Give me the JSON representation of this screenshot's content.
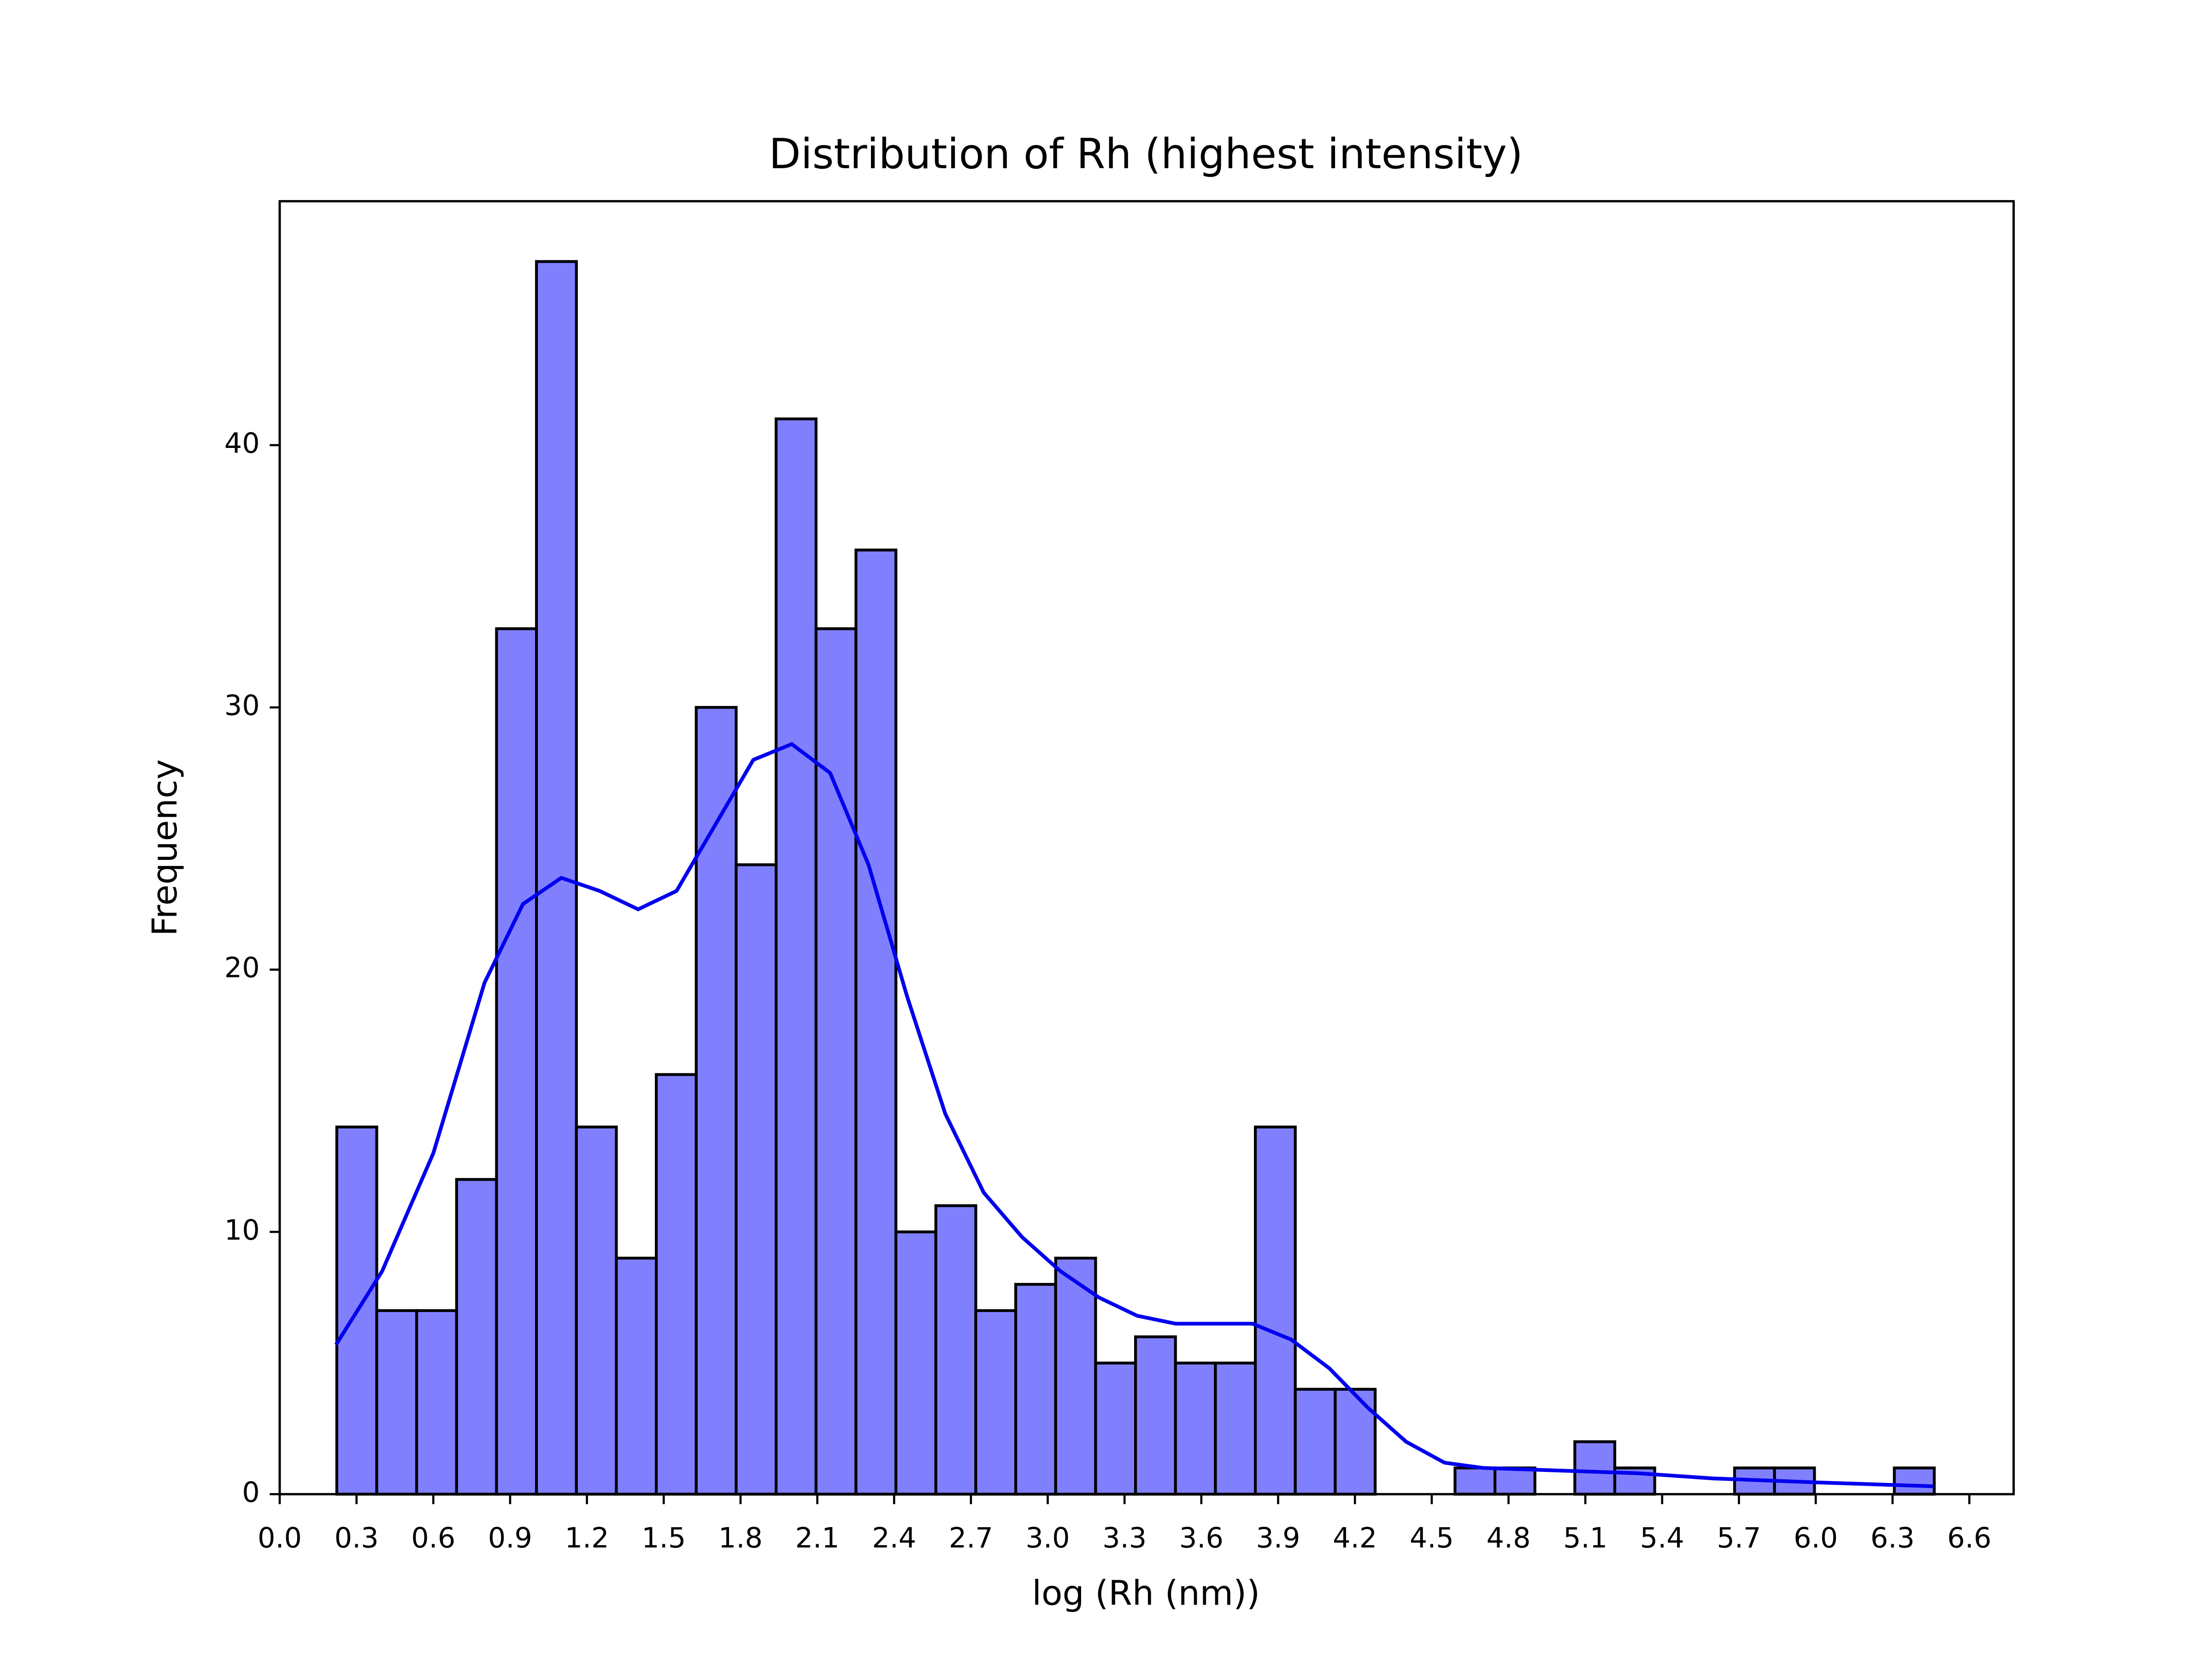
{
  "chart_data": {
    "type": "histogram",
    "title": "Distribution of Rh (highest intensity)",
    "x_label": "log (Rh (nm))",
    "y_label": "Frequency",
    "bins": [
      0.223,
      0.379,
      0.535,
      0.691,
      0.847,
      1.003,
      1.159,
      1.315,
      1.471,
      1.627,
      1.783,
      1.939,
      2.095,
      2.251,
      2.407,
      2.563,
      2.719,
      2.875,
      3.031,
      3.187,
      3.343,
      3.499,
      3.655,
      3.811,
      3.967,
      4.123,
      4.279,
      4.435,
      4.591,
      4.747,
      4.903,
      5.059,
      5.215,
      5.371,
      5.527,
      5.683,
      5.839,
      5.995,
      6.151,
      6.307,
      6.463
    ],
    "values": [
      14,
      7,
      7,
      12,
      33,
      47,
      14,
      9,
      16,
      30,
      24,
      41,
      33,
      36,
      10,
      11,
      7,
      8,
      9,
      5,
      6,
      5,
      5,
      14,
      4,
      4,
      0,
      0,
      1,
      1,
      0,
      2,
      1,
      0,
      0,
      1,
      1,
      0,
      0,
      1
    ],
    "color": "#8080ff",
    "edgecolor": "#000000",
    "kde": {
      "x": [
        0.22,
        0.4,
        0.6,
        0.8,
        0.95,
        1.1,
        1.25,
        1.4,
        1.55,
        1.7,
        1.85,
        2.0,
        2.15,
        2.3,
        2.45,
        2.6,
        2.75,
        2.9,
        3.05,
        3.2,
        3.35,
        3.5,
        3.65,
        3.8,
        3.95,
        4.1,
        4.25,
        4.4,
        4.55,
        4.7,
        5.0,
        5.3,
        5.6,
        6.0,
        6.46
      ],
      "values": [
        5.7,
        8.5,
        13,
        19.5,
        22.5,
        23.5,
        23,
        22.3,
        23,
        25.5,
        28,
        28.6,
        27.5,
        24,
        19,
        14.5,
        11.5,
        9.8,
        8.5,
        7.5,
        6.8,
        6.5,
        6.5,
        6.5,
        5.9,
        4.8,
        3.3,
        2.0,
        1.2,
        1.0,
        0.9,
        0.8,
        0.6,
        0.45,
        0.3
      ],
      "color": "#0000ee"
    },
    "xlim": [
      0,
      6.773
    ],
    "ylim": [
      0,
      49.3
    ],
    "xticks": [
      {
        "value": 0,
        "label": "0.0"
      },
      {
        "value": 0.3,
        "label": "0.3"
      },
      {
        "value": 0.6,
        "label": "0.6"
      },
      {
        "value": 0.9,
        "label": "0.9"
      },
      {
        "value": 1.2,
        "label": "1.2"
      },
      {
        "value": 1.5,
        "label": "1.5"
      },
      {
        "value": 1.8,
        "label": "1.8"
      },
      {
        "value": 2.1,
        "label": "2.1"
      },
      {
        "value": 2.4,
        "label": "2.4"
      },
      {
        "value": 2.7,
        "label": "2.7"
      },
      {
        "value": 3.0,
        "label": "3.0"
      },
      {
        "value": 3.3,
        "label": "3.3"
      },
      {
        "value": 3.6,
        "label": "3.6"
      },
      {
        "value": 3.9,
        "label": "3.9"
      },
      {
        "value": 4.2,
        "label": "4.2"
      },
      {
        "value": 4.5,
        "label": "4.5"
      },
      {
        "value": 4.8,
        "label": "4.8"
      },
      {
        "value": 5.1,
        "label": "5.1"
      },
      {
        "value": 5.4,
        "label": "5.4"
      },
      {
        "value": 5.7,
        "label": "5.7"
      },
      {
        "value": 6.0,
        "label": "6.0"
      },
      {
        "value": 6.3,
        "label": "6.3"
      },
      {
        "value": 6.6,
        "label": "6.6"
      }
    ],
    "yticks": [
      0,
      10,
      20,
      30,
      40
    ],
    "grid": false
  }
}
